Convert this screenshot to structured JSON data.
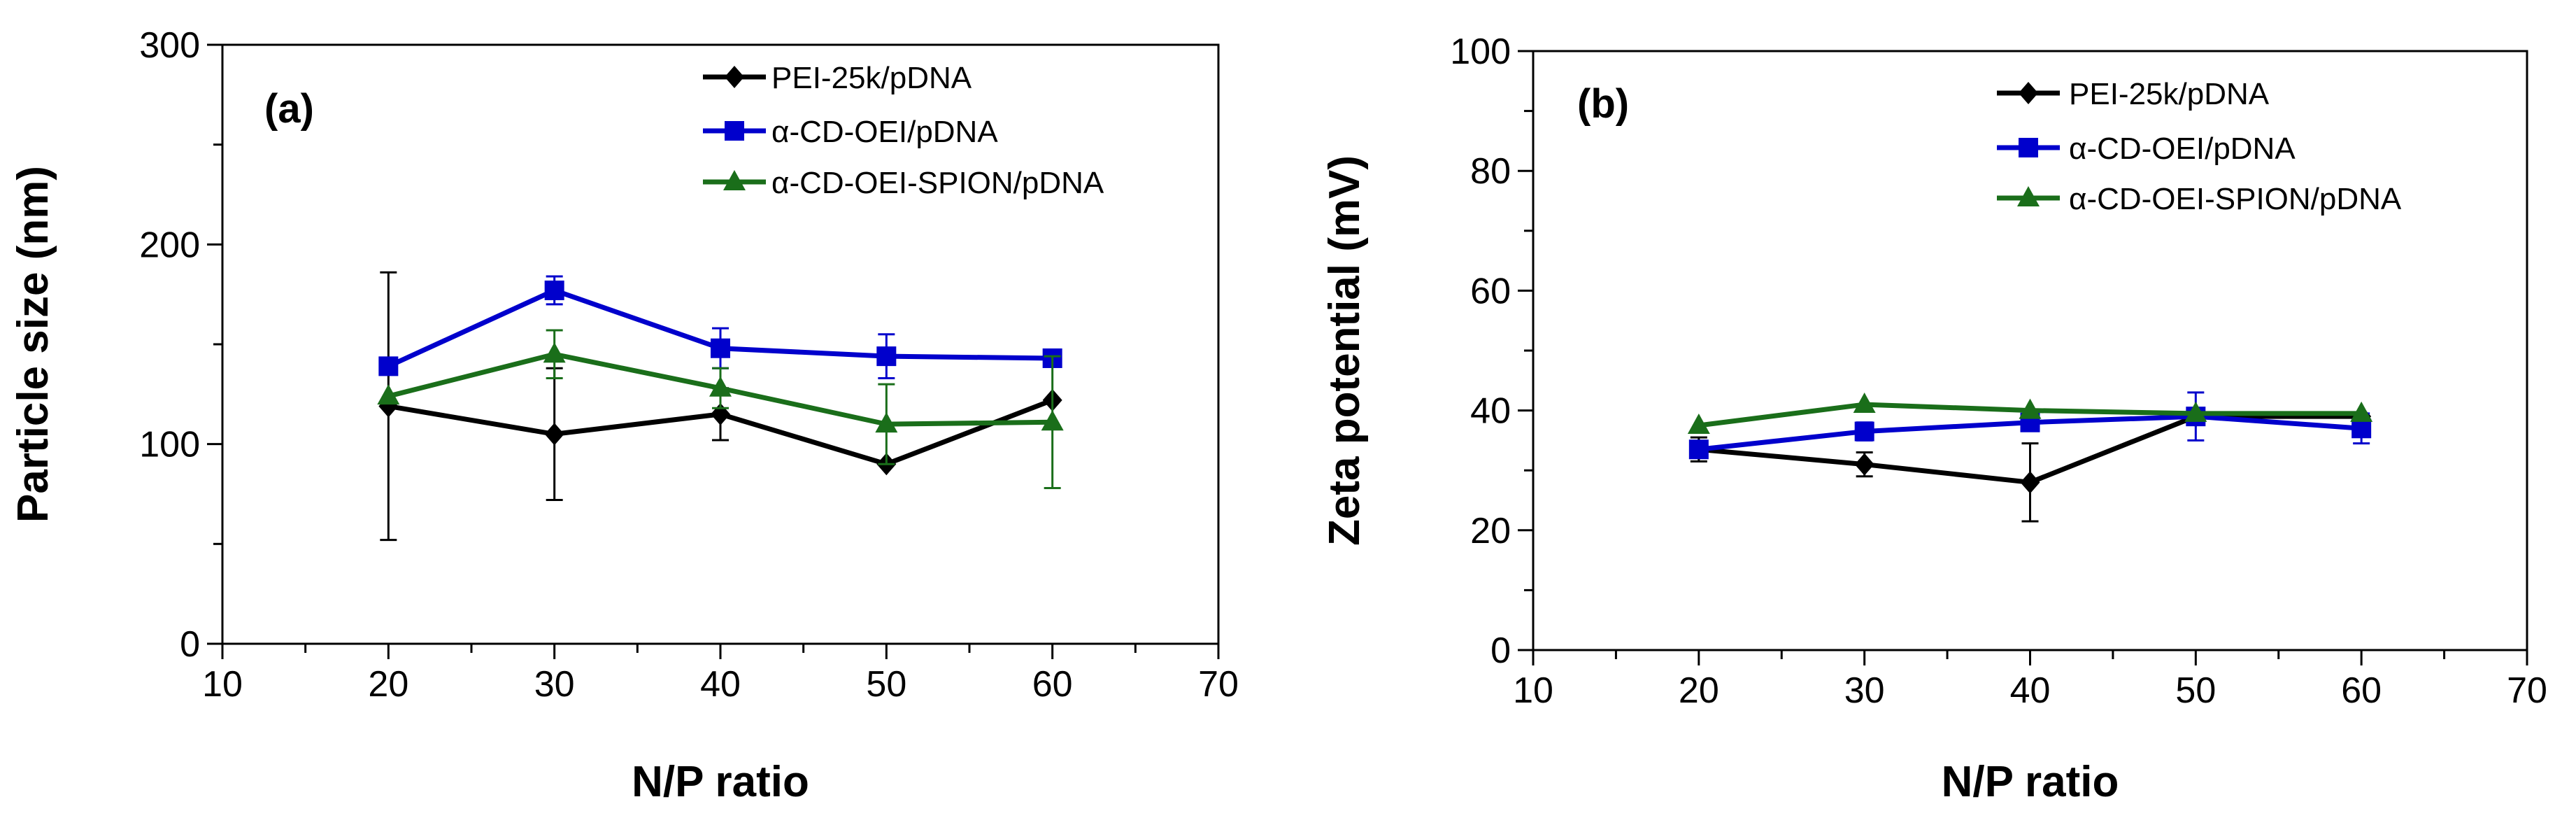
{
  "chart_data": [
    {
      "type": "line",
      "panel_label": "(a)",
      "xlabel": "N/P ratio",
      "ylabel": "Particle size (nm)",
      "xlim": [
        10,
        70
      ],
      "ylim": [
        0,
        300
      ],
      "xticks": [
        10,
        20,
        30,
        40,
        50,
        60,
        70
      ],
      "yticks": [
        0,
        100,
        200,
        300
      ],
      "grid": false,
      "legend_position": "top-right",
      "x": [
        20,
        30,
        40,
        50,
        60
      ],
      "series": [
        {
          "name": "PEI-25k/pDNA",
          "color": "#000000",
          "marker": "diamond",
          "values": [
            119,
            105,
            115,
            90,
            122
          ],
          "errors": [
            67,
            33,
            13,
            0,
            0
          ]
        },
        {
          "name": "α-CD-OEI/pDNA",
          "color": "#0000cc",
          "marker": "square",
          "values": [
            139,
            177,
            148,
            144,
            143
          ],
          "errors": [
            0,
            7,
            10,
            11,
            0
          ]
        },
        {
          "name": "α-CD-OEI-SPION/pDNA",
          "color": "#1a6e1a",
          "marker": "triangle",
          "values": [
            124,
            145,
            128,
            110,
            111
          ],
          "errors": [
            0,
            12,
            10,
            20,
            33
          ]
        }
      ]
    },
    {
      "type": "line",
      "panel_label": "(b)",
      "xlabel": "N/P ratio",
      "ylabel": "Zeta potential (mV)",
      "xlim": [
        10,
        70
      ],
      "ylim": [
        0,
        100
      ],
      "xticks": [
        10,
        20,
        30,
        40,
        50,
        60,
        70
      ],
      "yticks": [
        0,
        20,
        40,
        60,
        80,
        100
      ],
      "grid": false,
      "legend_position": "top-right",
      "x": [
        20,
        30,
        40,
        50,
        60
      ],
      "series": [
        {
          "name": "PEI-25k/pDNA",
          "color": "#000000",
          "marker": "diamond",
          "values": [
            33.5,
            31,
            28,
            39,
            39
          ],
          "errors": [
            2,
            2,
            6.5,
            1,
            0
          ]
        },
        {
          "name": "α-CD-OEI/pDNA",
          "color": "#0000cc",
          "marker": "square",
          "values": [
            33.5,
            36.5,
            38,
            39,
            37
          ],
          "errors": [
            1,
            1.5,
            1,
            4,
            2.5
          ]
        },
        {
          "name": "α-CD-OEI-SPION/pDNA",
          "color": "#1a6e1a",
          "marker": "triangle",
          "values": [
            37.5,
            41,
            40,
            39.5,
            39.5
          ],
          "errors": [
            0,
            0,
            0,
            0,
            0
          ]
        }
      ]
    }
  ]
}
